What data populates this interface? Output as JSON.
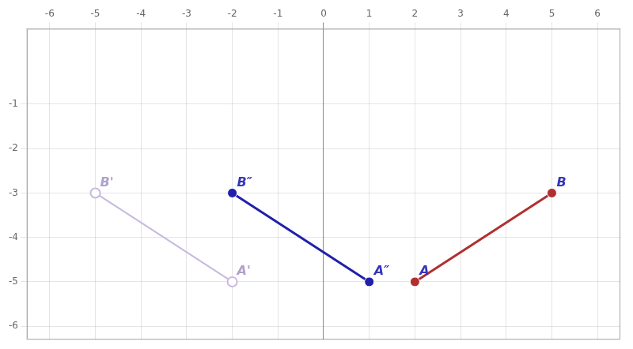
{
  "chart_data": {
    "type": "scatter",
    "xlim": [
      -6.5,
      6.5
    ],
    "ylim": [
      -6.3,
      0.7
    ],
    "xticks": [
      -6,
      -5,
      -4,
      -3,
      -2,
      -1,
      0,
      1,
      2,
      3,
      4,
      5,
      6
    ],
    "yticks": [
      -6,
      -5,
      -4,
      -3,
      -2,
      -1
    ],
    "grid": true,
    "series": [
      {
        "color": "#c8b8e0",
        "marker": "open_circle",
        "line_style": "solid",
        "x": [
          -5,
          -2
        ],
        "values": [
          -3,
          -5
        ]
      },
      {
        "color": "#b03030",
        "marker": "circle",
        "line_style": "solid",
        "x": [
          2,
          5
        ],
        "values": [
          -5,
          -3
        ]
      },
      {
        "color": "#2020aa",
        "marker": "circle",
        "line_style": "solid",
        "x": [
          1,
          -2
        ],
        "values": [
          -5,
          -3
        ]
      }
    ],
    "annotations": [
      {
        "text": "B'",
        "x": -5,
        "y": -3,
        "color": "#b0a0cc"
      },
      {
        "text": "A'",
        "x": -2,
        "y": -5,
        "color": "#b0a0cc"
      },
      {
        "text": "A",
        "x": 2,
        "y": -5,
        "color": "#3535bb"
      },
      {
        "text": "B",
        "x": 5,
        "y": -3,
        "color": "#3535bb"
      },
      {
        "text": "A″",
        "x": 1,
        "y": -5,
        "color": "#3535bb"
      },
      {
        "text": "B″",
        "x": -2,
        "y": -3,
        "color": "#3535bb"
      }
    ]
  }
}
